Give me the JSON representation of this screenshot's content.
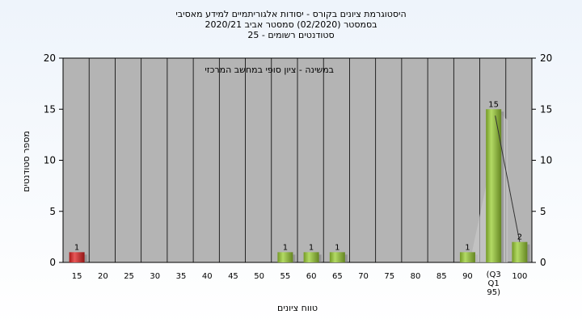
{
  "chart_data": {
    "type": "bar",
    "title_lines": [
      "היסטוגרמת ציונים בקורס - יסודות אלגוריתמיים למידע מאסיבי",
      "בסמסטר  (02/2020)  סמסטר אביב 2020/21",
      "סטודנטים רשומים - 25"
    ],
    "annotation": "במשינה - ציון סופי במחשב המרכזי",
    "xlabel": "טווח ציונים",
    "ylabel": "מספר סטודנטים",
    "ylim": [
      0,
      20
    ],
    "yticks": [
      0,
      5,
      10,
      15,
      20
    ],
    "categories": [
      "15",
      "20",
      "25",
      "30",
      "35",
      "40",
      "45",
      "50",
      "55",
      "60",
      "65",
      "70",
      "75",
      "80",
      "85",
      "90",
      "(Q3 Q1 95)",
      "100"
    ],
    "values": [
      1,
      0,
      0,
      0,
      0,
      0,
      0,
      0,
      1,
      1,
      1,
      0,
      0,
      0,
      0,
      1,
      15,
      2
    ],
    "bar_colors": [
      "#e02020",
      "#9acd32",
      "#9acd32",
      "#9acd32",
      "#9acd32",
      "#9acd32",
      "#9acd32",
      "#9acd32",
      "#9acd32",
      "#9acd32",
      "#9acd32",
      "#9acd32",
      "#9acd32",
      "#9acd32",
      "#9acd32",
      "#9acd32",
      "#9acd32",
      "#9acd32"
    ],
    "plot_background": "#b4b4b4",
    "grid": "vertical"
  }
}
